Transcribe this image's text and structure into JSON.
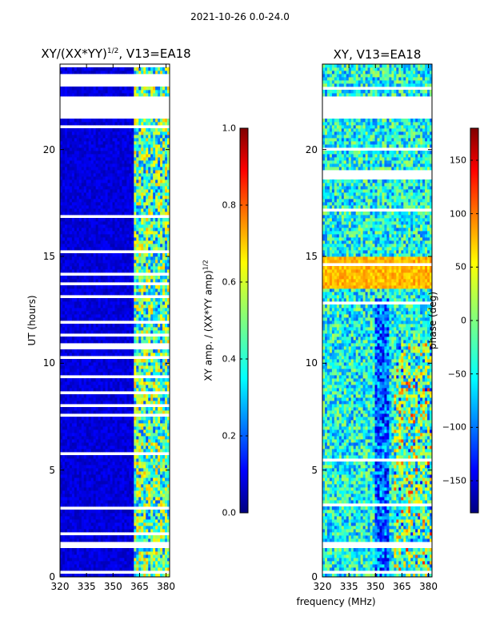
{
  "figure": {
    "suptitle": "2021-10-26 0.0-24.0"
  },
  "chart_data": [
    {
      "type": "heatmap",
      "title_prefix": "XY/(XX*YY)",
      "title_exponent": "1/2",
      "title_suffix": ", V13=EA18",
      "xlabel": "",
      "ylabel": "UT (hours)",
      "xlim": [
        320,
        382
      ],
      "ylim": [
        0,
        24
      ],
      "xticks": [
        "320",
        "335",
        "350",
        "365",
        "380"
      ],
      "xtick_values": [
        320,
        335,
        350,
        365,
        380
      ],
      "yticks": [
        "0",
        "5",
        "10",
        "15",
        "20"
      ],
      "ytick_values": [
        0,
        5,
        10,
        15,
        20
      ],
      "colorbar": {
        "label_prefix": "XY amp. / (XX*YY amp)",
        "label_exponent": "1/2",
        "vmin": 0.0,
        "vmax": 1.0,
        "ticks": [
          "0.0",
          "0.2",
          "0.4",
          "0.6",
          "0.8",
          "1.0"
        ],
        "tick_values": [
          0.0,
          0.2,
          0.4,
          0.6,
          0.8,
          1.0
        ]
      },
      "colormap": "jet",
      "background_level": 0.05,
      "bright_band_mhz": [
        362,
        382
      ],
      "bright_band_level": 0.45,
      "no_data_hours": [
        [
          21.4,
          22.5
        ],
        [
          23.1,
          23.5
        ],
        [
          1.3,
          1.6
        ]
      ]
    },
    {
      "type": "heatmap",
      "title": "XY, V13=EA18",
      "xlabel": "frequency (MHz)",
      "ylabel": "",
      "xlim": [
        320,
        382
      ],
      "ylim": [
        0,
        24
      ],
      "xticks": [
        "320",
        "335",
        "350",
        "365",
        "380"
      ],
      "xtick_values": [
        320,
        335,
        350,
        365,
        380
      ],
      "yticks": [
        "0",
        "5",
        "10",
        "15",
        "20"
      ],
      "ytick_values": [
        0,
        5,
        10,
        15,
        20
      ],
      "colorbar": {
        "label": "phase (deg)",
        "vmin": -180,
        "vmax": 180,
        "ticks": [
          "−150",
          "−100",
          "−50",
          "0",
          "50",
          "100",
          "150"
        ],
        "tick_values": [
          -150,
          -100,
          -50,
          0,
          50,
          100,
          150
        ]
      },
      "colormap": "jet",
      "background_phase_deg": -40,
      "warm_band_hours": [
        13.5,
        15.0
      ],
      "warm_band_phase_deg": 70,
      "no_data_hours": [
        [
          21.4,
          22.5
        ],
        [
          1.3,
          1.6
        ]
      ]
    }
  ]
}
